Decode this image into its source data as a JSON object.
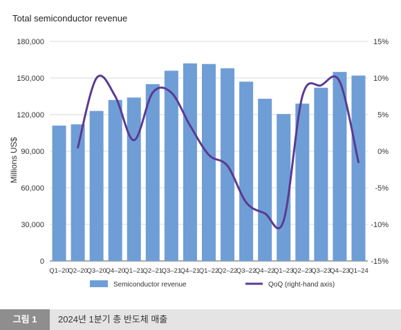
{
  "caption": {
    "figure_tag": "그림 1",
    "text": "2024년 1분기 총 반도체 매출"
  },
  "colors": {
    "bar": "#6f9ed6",
    "line": "#5a3a92",
    "grid": "#d9d9d9",
    "text": "#333333"
  },
  "chart_data": {
    "type": "bar",
    "title": "Total semiconductor revenue",
    "ylabel": "Millions US$",
    "xlabel": "",
    "categories": [
      "Q1–20",
      "Q2–20",
      "Q3–20",
      "Q4–20",
      "Q1–21",
      "Q2–21",
      "Q3–21",
      "Q4–21",
      "Q1–22",
      "Q2–22",
      "Q3–22",
      "Q4–22",
      "Q1–23",
      "Q2–23",
      "Q3–23",
      "Q4–23",
      "Q1–24"
    ],
    "ylim": [
      0,
      180000
    ],
    "y_ticks": [
      0,
      30000,
      60000,
      90000,
      120000,
      150000,
      180000
    ],
    "y_tick_labels": [
      "0",
      "30,000",
      "60,000",
      "90,000",
      "120,000",
      "150,000",
      "180,000"
    ],
    "y2lim": [
      -15,
      15
    ],
    "y2_ticks": [
      -15,
      -10,
      -5,
      0,
      5,
      10,
      15
    ],
    "y2_tick_labels": [
      "-15%",
      "-10%",
      "-5%",
      "0%",
      "5%",
      "10%",
      "15%"
    ],
    "grid": true,
    "legend_position": "bottom",
    "series": [
      {
        "name": "Semiconductor revenue",
        "type": "bar",
        "axis": "left",
        "values": [
          111000,
          112000,
          123000,
          132000,
          134000,
          145000,
          156000,
          162000,
          161500,
          158000,
          147000,
          133000,
          120500,
          129000,
          142000,
          155000,
          152000
        ]
      },
      {
        "name": "QoQ (right-hand axis)",
        "type": "line",
        "axis": "right",
        "values": [
          null,
          0.5,
          10.0,
          7.5,
          1.5,
          8.0,
          8.0,
          3.5,
          -0.5,
          -2.0,
          -7.0,
          -8.5,
          -9.5,
          7.5,
          9.0,
          9.5,
          -1.5
        ]
      }
    ]
  }
}
